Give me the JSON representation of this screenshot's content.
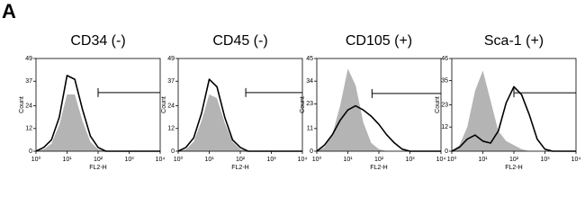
{
  "panel_label": "A",
  "chart_data": [
    {
      "type": "line",
      "title": "CD34 (-)",
      "xlabel": "FL2-H",
      "ylabel": "Count",
      "xscale": "log",
      "xlim": [
        1,
        10000
      ],
      "xticks": [
        {
          "value": 1,
          "label": "10⁰"
        },
        {
          "value": 10,
          "label": "10¹"
        },
        {
          "value": 100,
          "label": "10²"
        },
        {
          "value": 1000,
          "label": "10³"
        },
        {
          "value": 10000,
          "label": "10⁴"
        }
      ],
      "ylim": [
        0,
        49
      ],
      "yticks": [
        0,
        12,
        24,
        37,
        49
      ],
      "x": [
        1,
        1.78,
        3.16,
        5.62,
        10,
        17.8,
        31.6,
        56.2,
        100,
        178,
        316,
        562,
        1000,
        1780,
        3160,
        5620,
        10000
      ],
      "series": [
        {
          "color": "#b4b4b4",
          "fill": true,
          "values": [
            0,
            1,
            4,
            14,
            30,
            30,
            16,
            5,
            1,
            0,
            0,
            0,
            0,
            0,
            0,
            0,
            0
          ]
        },
        {
          "color": "#000000",
          "fill": false,
          "values": [
            0,
            2,
            6,
            18,
            40,
            38,
            22,
            8,
            2,
            0,
            0,
            0,
            0,
            0,
            0,
            0,
            0
          ]
        }
      ],
      "gate": {
        "x": [
          100,
          10000
        ],
        "y": 31
      }
    },
    {
      "type": "line",
      "title": "CD45 (-)",
      "xlabel": "FL2-H",
      "ylabel": "Count",
      "xscale": "log",
      "xlim": [
        1,
        10000
      ],
      "xticks": [
        {
          "value": 1,
          "label": "10⁰"
        },
        {
          "value": 10,
          "label": "10¹"
        },
        {
          "value": 100,
          "label": "10²"
        },
        {
          "value": 1000,
          "label": "10³"
        },
        {
          "value": 10000,
          "label": "10⁴"
        }
      ],
      "ylim": [
        0,
        49
      ],
      "yticks": [
        0,
        12,
        24,
        37,
        49
      ],
      "x": [
        1,
        1.78,
        3.16,
        5.62,
        10,
        17.8,
        31.6,
        56.2,
        100,
        178,
        316,
        562,
        1000,
        1780,
        3160,
        5620,
        10000
      ],
      "series": [
        {
          "color": "#b4b4b4",
          "fill": true,
          "values": [
            0,
            1,
            5,
            16,
            30,
            28,
            15,
            5,
            1,
            0,
            0,
            0,
            0,
            0,
            0,
            0,
            0
          ]
        },
        {
          "color": "#000000",
          "fill": false,
          "values": [
            0,
            2,
            7,
            20,
            38,
            34,
            18,
            6,
            2,
            0,
            0,
            0,
            0,
            0,
            0,
            0,
            0
          ]
        }
      ],
      "gate": {
        "x": [
          150,
          10000
        ],
        "y": 31
      }
    },
    {
      "type": "line",
      "title": "CD105 (+)",
      "xlabel": "FL2-H",
      "ylabel": "Count",
      "xscale": "log",
      "xlim": [
        1,
        10000
      ],
      "xticks": [
        {
          "value": 1,
          "label": "10⁰"
        },
        {
          "value": 10,
          "label": "10¹"
        },
        {
          "value": 100,
          "label": "10²"
        },
        {
          "value": 1000,
          "label": "10³"
        },
        {
          "value": 10000,
          "label": "10⁴"
        }
      ],
      "ylim": [
        0,
        45
      ],
      "yticks": [
        0,
        11,
        23,
        34,
        45
      ],
      "x": [
        1,
        1.78,
        3.16,
        5.62,
        10,
        17.8,
        31.6,
        56.2,
        100,
        178,
        316,
        562,
        1000,
        1780,
        3160,
        5620,
        10000
      ],
      "series": [
        {
          "color": "#b4b4b4",
          "fill": true,
          "values": [
            0,
            2,
            8,
            22,
            40,
            32,
            14,
            4,
            1,
            0,
            0,
            0,
            0,
            0,
            0,
            0,
            0
          ]
        },
        {
          "color": "#000000",
          "fill": false,
          "values": [
            0,
            3,
            8,
            15,
            20,
            22,
            20,
            17,
            13,
            8,
            4,
            1,
            0,
            0,
            0,
            0,
            0
          ]
        }
      ],
      "gate": {
        "x": [
          60,
          10000
        ],
        "y": 28
      }
    },
    {
      "type": "line",
      "title": "Sca-1 (+)",
      "xlabel": "FL2-H",
      "ylabel": "Count",
      "xscale": "log",
      "xlim": [
        1,
        10000
      ],
      "xticks": [
        {
          "value": 1,
          "label": "10⁰"
        },
        {
          "value": 10,
          "label": "10¹"
        },
        {
          "value": 100,
          "label": "10²"
        },
        {
          "value": 1000,
          "label": "10³"
        },
        {
          "value": 10000,
          "label": "10⁴"
        }
      ],
      "ylim": [
        0,
        46
      ],
      "yticks": [
        0,
        12,
        23,
        35,
        46
      ],
      "x": [
        1,
        1.78,
        3.16,
        5.62,
        10,
        17.8,
        31.6,
        56.2,
        100,
        178,
        316,
        562,
        1000,
        1780,
        3160,
        5620,
        10000
      ],
      "series": [
        {
          "color": "#b4b4b4",
          "fill": true,
          "values": [
            0,
            3,
            12,
            30,
            40,
            25,
            10,
            5,
            3,
            1,
            0,
            0,
            0,
            0,
            0,
            0,
            0
          ]
        },
        {
          "color": "#000000",
          "fill": false,
          "values": [
            0,
            2,
            6,
            8,
            5,
            4,
            10,
            24,
            32,
            28,
            18,
            6,
            1,
            0,
            0,
            0,
            0
          ]
        }
      ],
      "gate": {
        "x": [
          100,
          10000
        ],
        "y": 29
      }
    }
  ]
}
